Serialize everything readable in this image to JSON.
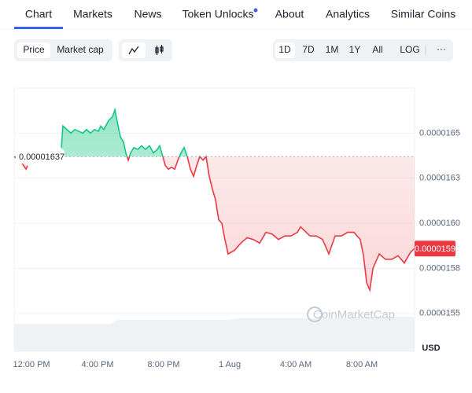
{
  "tabs": [
    "Chart",
    "Markets",
    "News",
    "Token Unlocks",
    "About",
    "Analytics",
    "Similar Coins"
  ],
  "view_buttons": [
    "Price",
    "Market cap"
  ],
  "range_buttons": [
    "1D",
    "7D",
    "1M",
    "1Y",
    "All"
  ],
  "log_button": "LOG",
  "more_button": "···",
  "chart_data": {
    "type": "line",
    "currency": "USD",
    "watermark": "CoinMarketCap",
    "x": [
      10.95,
      11.29,
      11.52,
      11.67,
      11.76,
      12.5,
      13.81,
      13.9,
      14.14,
      14.38,
      14.62,
      14.86,
      15.1,
      15.33,
      15.57,
      15.81,
      16.05,
      16.19,
      16.38,
      16.67,
      16.9,
      17.05,
      17.24,
      17.38,
      17.57,
      17.71,
      17.86,
      18.0,
      18.19,
      18.43,
      18.67,
      18.9,
      19.14,
      19.38,
      19.62,
      19.76,
      19.95,
      20.1,
      20.29,
      20.48,
      20.67,
      20.86,
      21.05,
      21.24,
      21.43,
      21.62,
      21.81,
      22.0,
      22.19,
      22.38,
      22.57,
      22.76,
      22.95,
      23.14,
      23.33,
      23.52,
      23.71,
      23.9,
      24.29,
      24.67,
      25.05,
      25.43,
      25.81,
      26.19,
      26.57,
      26.95,
      27.33,
      27.71,
      28.1,
      28.29,
      28.86,
      29.24,
      29.62,
      30.0,
      30.38,
      30.76,
      31.14,
      31.52,
      31.9,
      32.1,
      32.29,
      32.48,
      32.67,
      33.05,
      33.43,
      33.81,
      34.19,
      34.57,
      34.95,
      35.19
    ],
    "values": [
      1.637e-05,
      1.635e-05,
      1.632e-05,
      1.63e-05,
      1.632e-05,
      null,
      1.642e-05,
      1.654e-05,
      1.652e-05,
      1.65e-05,
      1.652e-05,
      1.651e-05,
      1.65e-05,
      1.652e-05,
      1.65e-05,
      1.652e-05,
      1.651e-05,
      1.654e-05,
      1.652e-05,
      1.657e-05,
      1.659e-05,
      1.663e-05,
      1.654e-05,
      1.648e-05,
      1.645e-05,
      1.639e-05,
      1.635e-05,
      1.639e-05,
      1.642e-05,
      1.641e-05,
      1.643e-05,
      1.641e-05,
      1.643e-05,
      1.639e-05,
      1.641e-05,
      1.643e-05,
      1.637e-05,
      1.632e-05,
      1.63e-05,
      1.631e-05,
      1.63e-05,
      1.635e-05,
      1.639e-05,
      1.642e-05,
      1.637e-05,
      1.63e-05,
      1.626e-05,
      1.632e-05,
      1.637e-05,
      1.635e-05,
      1.637e-05,
      1.626e-05,
      1.619e-05,
      1.613e-05,
      1.602e-05,
      1.6e-05,
      1.591e-05,
      1.583e-05,
      1.585e-05,
      1.589e-05,
      1.592e-05,
      1.591e-05,
      1.589e-05,
      1.595e-05,
      1.594e-05,
      1.591e-05,
      1.593e-05,
      1.593e-05,
      1.595e-05,
      1.598e-05,
      1.593e-05,
      1.593e-05,
      1.591e-05,
      1.583e-05,
      1.593e-05,
      1.593e-05,
      1.595e-05,
      1.595e-05,
      1.591e-05,
      1.582e-05,
      1.567e-05,
      1.563e-05,
      1.575e-05,
      1.583e-05,
      1.58e-05,
      1.58e-05,
      1.582e-05,
      1.578e-05,
      1.584e-05,
      1.586e-05
    ],
    "up_color": "#16c784",
    "down_color": "#ea3943",
    "baseline": 1.637e-05,
    "current_price": {
      "value": 1.586e-05,
      "label": "0.0000159"
    },
    "xlim": [
      10.95,
      35.19
    ],
    "xticks": [
      {
        "value": 12,
        "label": "12:00 PM"
      },
      {
        "value": 16,
        "label": "4:00 PM"
      },
      {
        "value": 20,
        "label": "8:00 PM"
      },
      {
        "value": 24,
        "label": "1 Aug"
      },
      {
        "value": 28,
        "label": "4:00 AM"
      },
      {
        "value": 32,
        "label": "8:00 AM"
      }
    ],
    "ylim": [
      1.529e-05,
      1.675e-05
    ],
    "yticks": [
      1.65e-05,
      {
        "value": 1.625e-05,
        "label": "0.0000163"
      },
      {
        "value": 1.6e-05,
        "label": "0.0000160"
      },
      {
        "value": 1.575e-05,
        "label": "0.0000158"
      },
      1.55e-05
    ],
    "grid": true
  }
}
